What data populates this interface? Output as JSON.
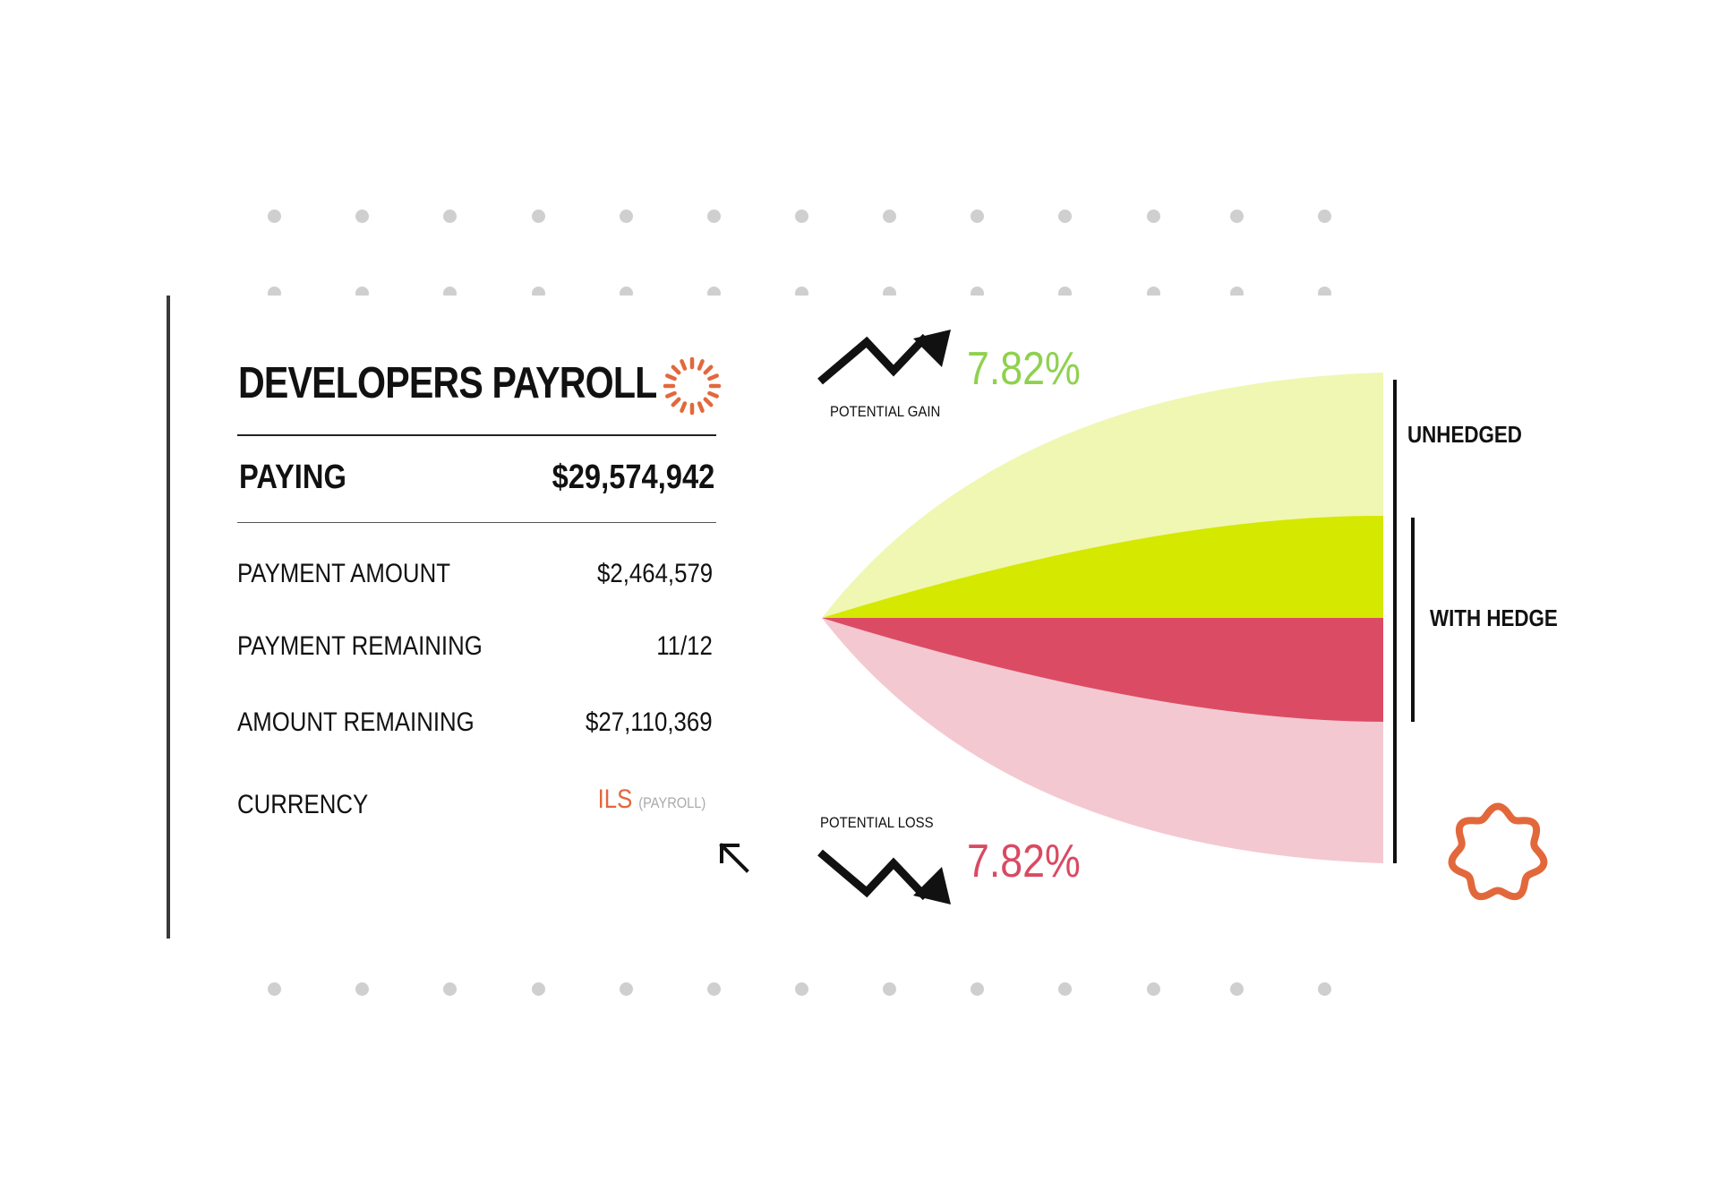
{
  "card": {
    "title": "DEVELOPERS PAYROLL",
    "paying_label": "PAYING",
    "paying_value": "$29,574,942",
    "rows": [
      {
        "label": "PAYMENT AMOUNT",
        "value": "$2,464,579"
      },
      {
        "label": "PAYMENT REMAINING",
        "value": "11/12"
      },
      {
        "label": "AMOUNT REMAINING",
        "value": "$27,110,369"
      }
    ],
    "currency_label": "CURRENCY",
    "currency_value": "ILS",
    "currency_note": "(PAYROLL)"
  },
  "chart": {
    "gain_label": "POTENTIAL GAIN",
    "gain_value": "7.82%",
    "loss_label": "POTENTIAL LOSS",
    "loss_value": "7.82%",
    "unhedged_label": "UNHEDGED",
    "hedged_label": "WITH HEDGE"
  },
  "colors": {
    "gain_text": "#8fd14f",
    "loss_text": "#d94a63",
    "unhedged_gain_fill": "#f0f7b3",
    "hedged_gain_fill": "#d4e800",
    "hedged_loss_fill": "#db4c64",
    "unhedged_loss_fill": "#f4c8d1",
    "accent_orange": "#e2683c",
    "dot_gray": "#cfcfcf"
  },
  "icons": {
    "loading": "dashed-ring-icon",
    "badge": "wavy-circle-icon",
    "arrow_up_left": "arrow-up-left-icon",
    "gain_arrow": "zigzag-up-arrow-icon",
    "loss_arrow": "zigzag-down-arrow-icon"
  }
}
